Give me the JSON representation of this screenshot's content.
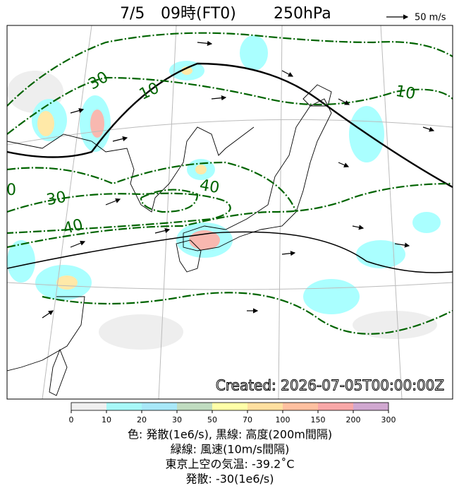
{
  "header": {
    "date": "7/5",
    "time": "09時(FT0)",
    "level": "250hPa",
    "reference_vector": "50 m/s"
  },
  "map": {
    "contour_labels": [
      30,
      10,
      10,
      40,
      30,
      0,
      40
    ],
    "created": "Created: 2026-07-05T00:00:00Z"
  },
  "colorbar": {
    "ticks": [
      0,
      10,
      20,
      30,
      50,
      70,
      100,
      150,
      200,
      300
    ],
    "colors": [
      "#f0f0f0",
      "#a8f8f8",
      "#a8e8f8",
      "#c0dcc0",
      "#ffffa8",
      "#ffe0a0",
      "#ffc0a0",
      "#f8a8a8",
      "#d0a8d0"
    ]
  },
  "caption": [
    "色: 発散(1e6/s),  黒線: 高度(200m間隔)",
    "緑線: 風速(10m/s間隔)",
    "東京上空の気温: -39.2˚C",
    "発散: -30(1e6/s)"
  ]
}
